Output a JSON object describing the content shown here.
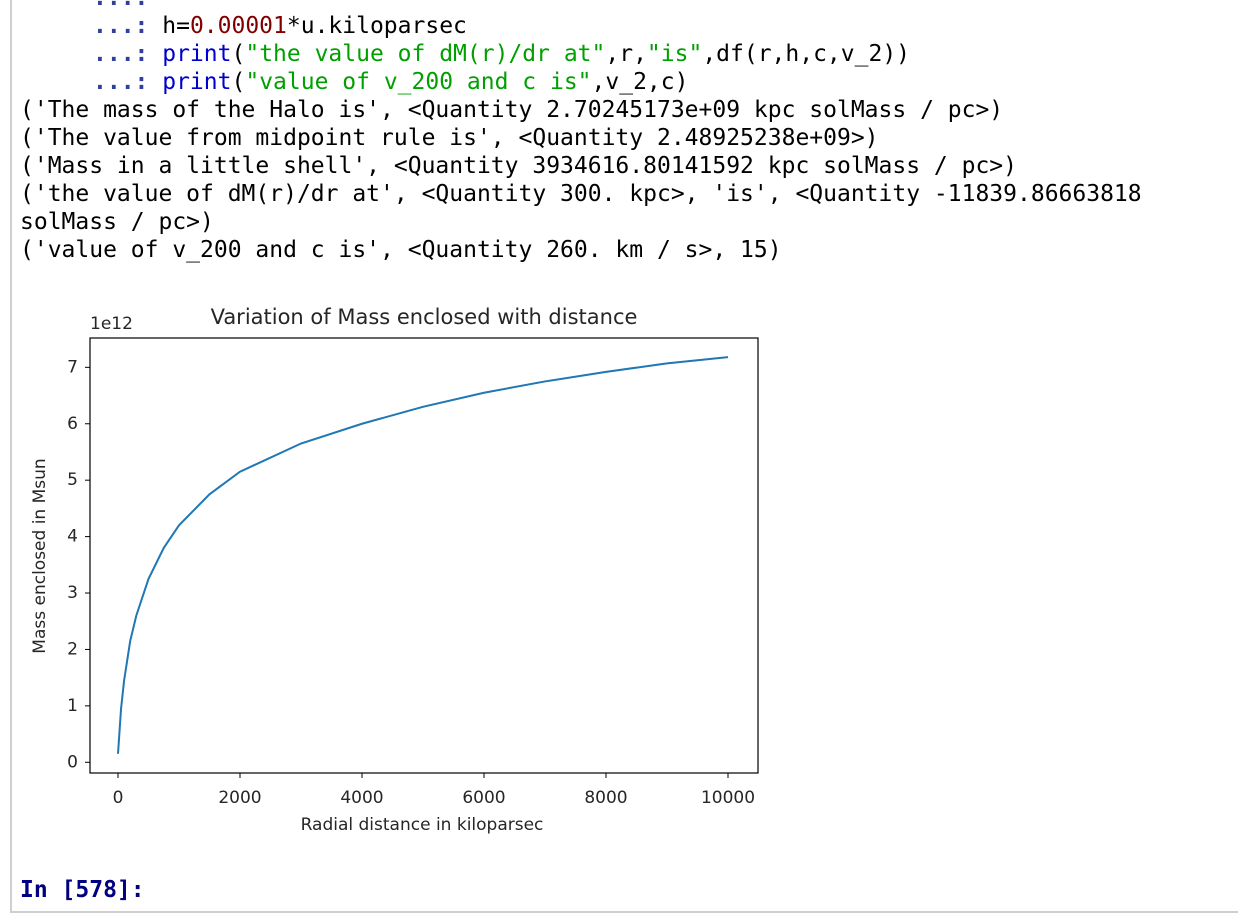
{
  "input_lines": [
    {
      "prompt": "...:",
      "segments": []
    },
    {
      "prompt": "...:",
      "segments": [
        " h=",
        "0.00001",
        "*u.kiloparsec"
      ]
    },
    {
      "prompt": "...:",
      "segments": [
        " print",
        "(",
        "\"the value of dM(r)/dr at\"",
        ",r,",
        "\"is\"",
        ",df(r,h,c,v_2))"
      ]
    },
    {
      "prompt": "...:",
      "segments": [
        " print",
        "(",
        "\"value of v_200 and c is\"",
        ",v_2,c)"
      ]
    }
  ],
  "output_lines": [
    "('The mass of the Halo is', <Quantity 2.70245173e+09 kpc solMass / pc>)",
    "('The value from midpoint rule is', <Quantity 2.48925238e+09>)",
    "('Mass in a little shell', <Quantity 3934616.80141592 kpc solMass / pc>)",
    "('the value of dM(r)/dr at', <Quantity 300. kpc>, 'is', <Quantity -11839.86663818",
    "solMass / pc>)",
    "('value of v_200 and c is', <Quantity 260. km / s>, 15)"
  ],
  "chart_data": {
    "type": "line",
    "title": "Variation of Mass enclosed with distance",
    "x_label": "Radial distance in kiloparsec",
    "y_label": "Mass enclosed in Msun",
    "y_offset_label": "1e12",
    "x": [
      0,
      50,
      100,
      200,
      300,
      500,
      750,
      1000,
      1500,
      2000,
      3000,
      4000,
      5000,
      6000,
      7000,
      8000,
      9000,
      10000
    ],
    "values": [
      0.15,
      0.95,
      1.45,
      2.15,
      2.6,
      3.25,
      3.8,
      4.2,
      4.75,
      5.15,
      5.65,
      6.0,
      6.3,
      6.55,
      6.75,
      6.92,
      7.07,
      7.18
    ],
    "color": "#1f77b4",
    "xlim": [
      -459,
      10492
    ],
    "xticks": [
      0,
      2000,
      4000,
      6000,
      8000,
      10000
    ],
    "ylim": [
      -0.19,
      7.52
    ],
    "yticks": [
      0,
      1,
      2,
      3,
      4,
      5,
      6,
      7
    ]
  },
  "next_prompt": "In [578]:"
}
